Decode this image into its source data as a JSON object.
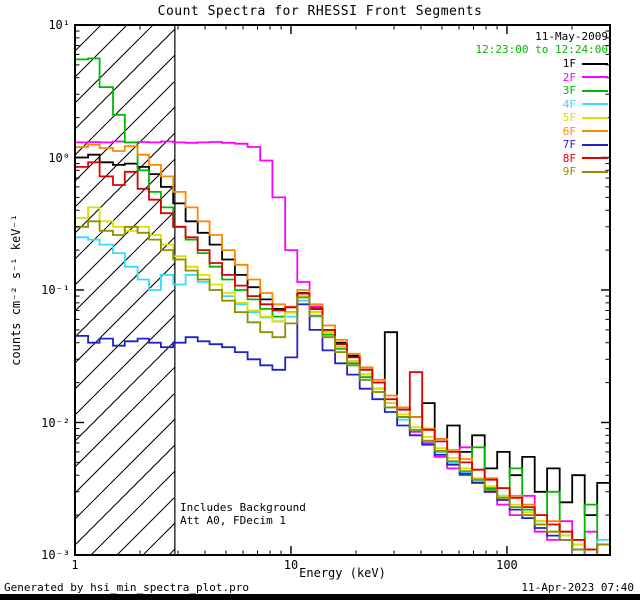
{
  "plot_title": "Count Spectra for RHESSI Front Segments",
  "header": {
    "date": "11-May-2009",
    "time_range": "12:23:00 to 12:24:00"
  },
  "annotations": {
    "background_note": "Includes Background",
    "attenuator_note": "Att A0, FDecim 1"
  },
  "footer": {
    "generated_by": "Generated by hsi_min_spectra_plot.pro",
    "timestamp": "11-Apr-2023 07:40"
  },
  "colors": {
    "time_range_text": "#00b400",
    "axis": "#000000",
    "background": "#ffffff"
  },
  "axes": {
    "xlabel": "Energy (keV)",
    "ylabel": "counts cm⁻² s⁻¹ keV⁻¹",
    "x_tick_labels": [
      {
        "value": 1,
        "label": "1"
      },
      {
        "value": 10,
        "label": "10"
      },
      {
        "value": 100,
        "label": "100"
      }
    ],
    "y_tick_labels": [
      {
        "value": 10,
        "label": "10¹"
      },
      {
        "value": 1,
        "label": "10⁰"
      },
      {
        "value": 0.1,
        "label": "10⁻¹"
      },
      {
        "value": 0.01,
        "label": "10⁻²"
      },
      {
        "value": 0.001,
        "label": "10⁻³"
      }
    ]
  },
  "chart_data": {
    "type": "line",
    "line_style": "histogram-step",
    "title": "Count Spectra for RHESSI Front Segments",
    "xlabel": "Energy (keV)",
    "ylabel": "counts cm⁻² s⁻¹ keV⁻¹",
    "x_scale": "log",
    "y_scale": "log",
    "xlim": [
      1,
      300
    ],
    "ylim": [
      0.001,
      10
    ],
    "grid": false,
    "legend_position": "top-right",
    "excluded_region": {
      "xmin": 1,
      "xmax": 2.9,
      "style": "diagonal-hatch"
    },
    "x_kev": [
      1.0,
      1.15,
      1.3,
      1.5,
      1.7,
      1.95,
      2.2,
      2.5,
      2.85,
      3.25,
      3.7,
      4.2,
      4.8,
      5.5,
      6.3,
      7.2,
      8.2,
      9.4,
      10.7,
      12.2,
      14,
      16,
      18.2,
      20.8,
      23.8,
      27.2,
      31,
      35.5,
      40.5,
      46.3,
      52.9,
      60.4,
      69,
      78.9,
      90.1,
      103,
      117.6,
      134.4,
      153.5,
      175.4,
      200.4,
      229,
      261.6,
      300
    ],
    "series": [
      {
        "name": "1F",
        "color": "#000000",
        "values": [
          1.0,
          1.05,
          0.92,
          0.88,
          0.9,
          0.85,
          0.75,
          0.6,
          0.45,
          0.33,
          0.27,
          0.22,
          0.17,
          0.13,
          0.105,
          0.085,
          0.072,
          0.068,
          0.095,
          0.072,
          0.05,
          0.04,
          0.032,
          0.026,
          0.02,
          0.048,
          0.013,
          0.011,
          0.014,
          0.0075,
          0.0095,
          0.006,
          0.008,
          0.0045,
          0.006,
          0.004,
          0.0055,
          0.003,
          0.0045,
          0.0025,
          0.004,
          0.002,
          0.0035,
          0.0022
        ]
      },
      {
        "name": "2F",
        "color": "#ff00ff",
        "values": [
          1.3,
          1.31,
          1.3,
          1.32,
          1.3,
          1.31,
          1.3,
          1.32,
          1.3,
          1.29,
          1.3,
          1.31,
          1.29,
          1.27,
          1.2,
          0.95,
          0.5,
          0.2,
          0.115,
          0.075,
          0.048,
          0.037,
          0.029,
          0.023,
          0.018,
          0.014,
          0.011,
          0.0085,
          0.007,
          0.0055,
          0.0045,
          0.0065,
          0.0035,
          0.003,
          0.0024,
          0.002,
          0.0028,
          0.0015,
          0.0013,
          0.0018,
          0.0011,
          0.0015,
          0.001,
          0.0012
        ]
      },
      {
        "name": "3F",
        "color": "#00b800",
        "values": [
          5.5,
          5.6,
          3.4,
          2.1,
          1.3,
          0.8,
          0.55,
          0.42,
          0.3,
          0.24,
          0.19,
          0.15,
          0.12,
          0.1,
          0.085,
          0.072,
          0.063,
          0.068,
          0.088,
          0.068,
          0.046,
          0.036,
          0.028,
          0.022,
          0.017,
          0.013,
          0.011,
          0.0088,
          0.0072,
          0.006,
          0.0048,
          0.004,
          0.0065,
          0.0032,
          0.0028,
          0.0045,
          0.0022,
          0.0018,
          0.003,
          0.0014,
          0.0012,
          0.0024,
          0.001,
          0.0016
        ]
      },
      {
        "name": "4F",
        "color": "#33ddff",
        "values": [
          0.25,
          0.24,
          0.22,
          0.19,
          0.15,
          0.12,
          0.1,
          0.13,
          0.11,
          0.13,
          0.115,
          0.1,
          0.09,
          0.078,
          0.068,
          0.062,
          0.058,
          0.063,
          0.083,
          0.063,
          0.044,
          0.034,
          0.027,
          0.021,
          0.017,
          0.013,
          0.0105,
          0.0088,
          0.0072,
          0.006,
          0.005,
          0.0042,
          0.0036,
          0.0031,
          0.0027,
          0.0023,
          0.002,
          0.0017,
          0.0015,
          0.0013,
          0.0012,
          0.001,
          0.0013,
          0.001
        ]
      },
      {
        "name": "5F",
        "color": "#dede00",
        "values": [
          0.35,
          0.42,
          0.33,
          0.3,
          0.28,
          0.3,
          0.26,
          0.22,
          0.18,
          0.15,
          0.13,
          0.11,
          0.095,
          0.08,
          0.07,
          0.063,
          0.058,
          0.068,
          0.09,
          0.068,
          0.048,
          0.037,
          0.029,
          0.023,
          0.018,
          0.014,
          0.0115,
          0.0092,
          0.0078,
          0.0064,
          0.0054,
          0.0045,
          0.0038,
          0.0033,
          0.0028,
          0.0024,
          0.0021,
          0.0018,
          0.0015,
          0.0014,
          0.0012,
          0.001,
          0.0012,
          0.001
        ]
      },
      {
        "name": "6F",
        "color": "#ff8800",
        "values": [
          1.2,
          1.25,
          1.18,
          1.12,
          1.22,
          1.05,
          0.88,
          0.72,
          0.55,
          0.42,
          0.33,
          0.26,
          0.2,
          0.155,
          0.12,
          0.095,
          0.078,
          0.075,
          0.1,
          0.078,
          0.054,
          0.042,
          0.033,
          0.026,
          0.021,
          0.016,
          0.013,
          0.011,
          0.009,
          0.0075,
          0.0062,
          0.0053,
          0.0044,
          0.0038,
          0.0032,
          0.0028,
          0.0024,
          0.002,
          0.0018,
          0.0015,
          0.0013,
          0.0011,
          0.001,
          0.0011
        ]
      },
      {
        "name": "7F",
        "color": "#2222cc",
        "values": [
          0.045,
          0.04,
          0.043,
          0.038,
          0.041,
          0.043,
          0.04,
          0.037,
          0.04,
          0.044,
          0.041,
          0.039,
          0.037,
          0.034,
          0.03,
          0.027,
          0.025,
          0.031,
          0.078,
          0.05,
          0.035,
          0.028,
          0.023,
          0.018,
          0.015,
          0.012,
          0.0095,
          0.008,
          0.0068,
          0.0057,
          0.0048,
          0.0041,
          0.0035,
          0.003,
          0.0026,
          0.0022,
          0.0019,
          0.0016,
          0.0014,
          0.0013,
          0.0011,
          0.001,
          0.0012,
          0.001
        ]
      },
      {
        "name": "8F",
        "color": "#dd0000",
        "values": [
          0.85,
          0.92,
          0.72,
          0.62,
          0.78,
          0.58,
          0.48,
          0.38,
          0.3,
          0.25,
          0.2,
          0.16,
          0.13,
          0.108,
          0.09,
          0.078,
          0.07,
          0.074,
          0.094,
          0.073,
          0.05,
          0.039,
          0.031,
          0.025,
          0.02,
          0.015,
          0.0125,
          0.024,
          0.0088,
          0.0072,
          0.006,
          0.005,
          0.0044,
          0.0037,
          0.0032,
          0.0027,
          0.0023,
          0.002,
          0.0017,
          0.0015,
          0.0013,
          0.0011,
          0.001,
          0.0012
        ]
      },
      {
        "name": "9F",
        "color": "#8f8f00",
        "values": [
          0.3,
          0.33,
          0.28,
          0.26,
          0.3,
          0.27,
          0.24,
          0.2,
          0.17,
          0.14,
          0.12,
          0.1,
          0.083,
          0.068,
          0.057,
          0.048,
          0.044,
          0.056,
          0.088,
          0.064,
          0.044,
          0.034,
          0.027,
          0.021,
          0.017,
          0.013,
          0.011,
          0.0088,
          0.0073,
          0.0061,
          0.0051,
          0.0043,
          0.0037,
          0.0031,
          0.0027,
          0.0023,
          0.002,
          0.0017,
          0.0015,
          0.0013,
          0.0011,
          0.001,
          0.0012,
          0.0009
        ]
      }
    ]
  }
}
